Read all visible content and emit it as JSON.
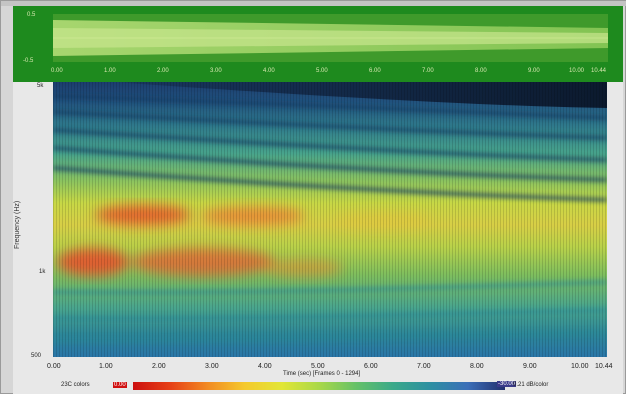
{
  "waveform": {
    "amp_top": "0.5",
    "amp_bottom": "-0.5",
    "time_ticks": [
      "0.00",
      "1.00",
      "2.00",
      "3.00",
      "4.00",
      "5.00",
      "6.00",
      "7.00",
      "8.00",
      "9.00",
      "10.00",
      "10.44"
    ]
  },
  "spectrogram": {
    "y_axis_label": "Frequency (Hz)",
    "y_ticks": [
      "5k",
      "1k",
      "500"
    ],
    "x_ticks": [
      "0.00",
      "1.00",
      "2.00",
      "3.00",
      "4.00",
      "5.00",
      "6.00",
      "7.00",
      "8.00",
      "9.00",
      "10.00",
      "10.44"
    ],
    "x_axis_label": "Time (sec)  [Frames 0 - 1294]"
  },
  "colorbar": {
    "left_label": "23C colors",
    "left_value": "0.00",
    "right_value": "-30.00",
    "right_label": "0.21 dB/color"
  },
  "colors": {
    "waveform_bg": "#1e8a1e",
    "spectrogram_hot": "#e8542a",
    "spectrogram_cold": "#1c3d6e"
  }
}
